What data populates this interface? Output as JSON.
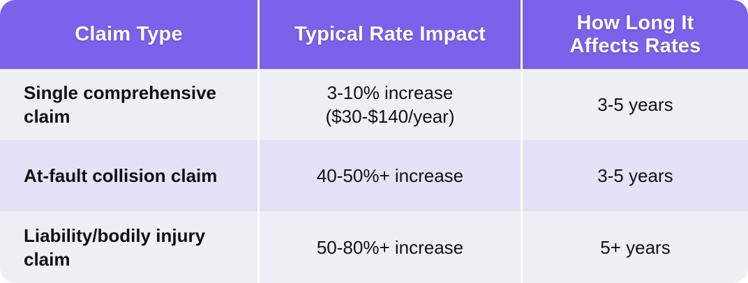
{
  "headers": {
    "claim_type": "Claim Type",
    "rate_impact": "Typical Rate Impact",
    "duration": "How Long It\nAffects Rates"
  },
  "rows": [
    {
      "claim_type": "Single comprehensive\nclaim",
      "rate_impact": "3-10% increase\n($30-$140/year)",
      "duration": "3-5 years"
    },
    {
      "claim_type": "At-fault collision claim",
      "rate_impact": "40-50%+ increase",
      "duration": "3-5 years"
    },
    {
      "claim_type": "Liability/bodily injury\nclaim",
      "rate_impact": "50-80%+ increase",
      "duration": "5+ years"
    }
  ],
  "colors": {
    "header_bg": "#7a63ea",
    "row_light": "#eff0f6",
    "row_tint": "#e4e2f6"
  }
}
